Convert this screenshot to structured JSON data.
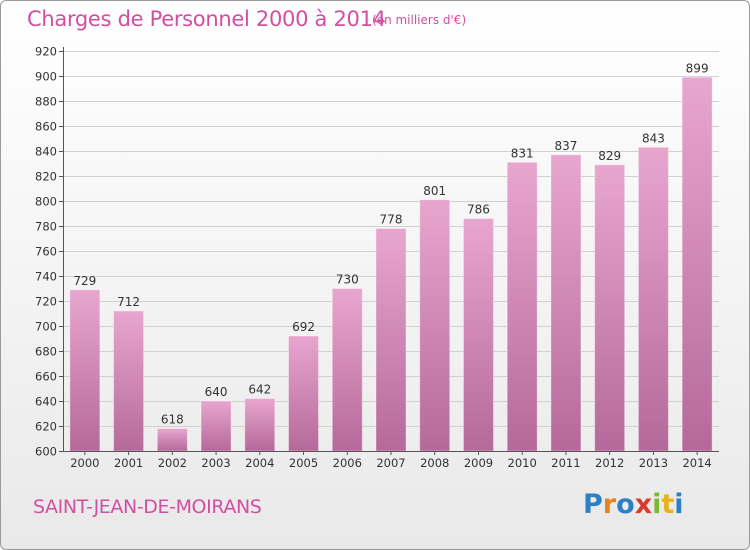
{
  "title": "Charges de Personnel 2000 à 2014",
  "subtitle": "(en milliers d'€)",
  "commune": "SAINT-JEAN-DE-MOIRANS",
  "logo": {
    "letters": [
      {
        "ch": "P",
        "color": "#2f7fc4"
      },
      {
        "ch": "r",
        "color": "#e9821c"
      },
      {
        "ch": "o",
        "color": "#2f7fc4"
      },
      {
        "ch": "x",
        "color": "#d83a2e"
      },
      {
        "ch": "i",
        "color": "#7bb83a"
      },
      {
        "ch": "t",
        "color": "#e9b21c"
      },
      {
        "ch": "i",
        "color": "#2f7fc4"
      }
    ]
  },
  "colors": {
    "bar_top": "#e8a6cf",
    "bar_bottom": "#b5699a",
    "accent": "#d24fa0",
    "grid": "#d0d0d0",
    "text": "#333333"
  },
  "chart_data": {
    "type": "bar",
    "categories": [
      "2000",
      "2001",
      "2002",
      "2003",
      "2004",
      "2005",
      "2006",
      "2007",
      "2008",
      "2009",
      "2010",
      "2011",
      "2012",
      "2013",
      "2014"
    ],
    "values": [
      729,
      712,
      618,
      640,
      642,
      692,
      730,
      778,
      801,
      786,
      831,
      837,
      829,
      843,
      899
    ],
    "data_labels": [
      "729",
      "712",
      "618",
      "640",
      "642",
      "692",
      "730",
      "778",
      "801",
      "786",
      "831",
      "837",
      "829",
      "843",
      "899"
    ],
    "ylim": [
      600,
      920
    ],
    "yticks": [
      600,
      620,
      640,
      660,
      680,
      700,
      720,
      740,
      760,
      780,
      800,
      820,
      840,
      860,
      880,
      900,
      920
    ],
    "grid": true,
    "xlabel": "",
    "ylabel": ""
  }
}
